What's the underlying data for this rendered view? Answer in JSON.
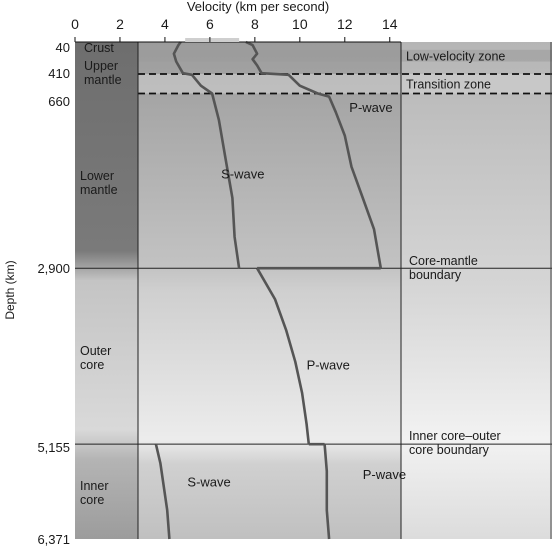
{
  "chart_data": {
    "type": "line",
    "title": "",
    "xlabel": "Velocity (km per second)",
    "ylabel": "Depth (km)",
    "xlim": [
      0,
      14.5
    ],
    "ylim": [
      0,
      6371
    ],
    "x_ticks": [
      0,
      2,
      4,
      6,
      8,
      10,
      12,
      14
    ],
    "y_tick_labels": [
      {
        "depth": 40,
        "label": "40"
      },
      {
        "depth": 410,
        "label": "410"
      },
      {
        "depth": 660,
        "label": "660"
      },
      {
        "depth": 2900,
        "label": "2,900"
      },
      {
        "depth": 5155,
        "label": "5,155"
      },
      {
        "depth": 6371,
        "label": "6,371"
      }
    ],
    "layers": [
      {
        "label": "Crust",
        "depth_top": 0,
        "depth_bottom": 40
      },
      {
        "label": "Upper mantle",
        "depth_top": 40,
        "depth_bottom": 660
      },
      {
        "label": "Lower mantle",
        "depth_top": 660,
        "depth_bottom": 2900
      },
      {
        "label": "Outer core",
        "depth_top": 2900,
        "depth_bottom": 5155
      },
      {
        "label": "Inner core",
        "depth_top": 5155,
        "depth_bottom": 6371
      }
    ],
    "zones": [
      {
        "label": "Low-velocity zone",
        "depth_top": 100,
        "depth_bottom": 250
      },
      {
        "label": "Transition zone",
        "depth_top": 410,
        "depth_bottom": 660
      }
    ],
    "boundaries": [
      {
        "label": "Core-mantle boundary",
        "depth": 2900
      },
      {
        "label": "Inner core–outer core boundary",
        "depth": 5155
      }
    ],
    "series": [
      {
        "label_segments": [
          {
            "text": "P-wave",
            "velocity": 12.2,
            "depth": 900
          },
          {
            "text": "P-wave",
            "velocity": 10.3,
            "depth": 4200
          },
          {
            "text": "P-wave",
            "velocity": 12.8,
            "depth": 5600
          }
        ],
        "segments": [
          [
            [
              7.6,
              0
            ],
            [
              7.9,
              40
            ],
            [
              8.1,
              150
            ],
            [
              7.9,
              220
            ],
            [
              8.1,
              300
            ],
            [
              8.3,
              400
            ],
            [
              9.5,
              420
            ],
            [
              10.0,
              560
            ],
            [
              10.8,
              660
            ],
            [
              11.3,
              700
            ],
            [
              11.6,
              900
            ],
            [
              12.0,
              1200
            ],
            [
              12.3,
              1600
            ],
            [
              12.8,
              2000
            ],
            [
              13.3,
              2400
            ],
            [
              13.6,
              2900
            ]
          ],
          [
            [
              8.1,
              2900
            ],
            [
              8.9,
              3300
            ],
            [
              9.4,
              3700
            ],
            [
              9.8,
              4100
            ],
            [
              10.1,
              4500
            ],
            [
              10.3,
              4900
            ],
            [
              10.4,
              5155
            ]
          ],
          [
            [
              11.1,
              5155
            ],
            [
              11.2,
              5500
            ],
            [
              11.2,
              6000
            ],
            [
              11.3,
              6371
            ]
          ]
        ]
      },
      {
        "label_segments": [
          {
            "text": "S-wave",
            "velocity": 6.5,
            "depth": 1750
          },
          {
            "text": "S-wave",
            "velocity": 5.0,
            "depth": 5700
          }
        ],
        "segments": [
          [
            [
              4.7,
              0
            ],
            [
              4.6,
              40
            ],
            [
              4.4,
              150
            ],
            [
              4.5,
              250
            ],
            [
              4.8,
              400
            ],
            [
              5.2,
              420
            ],
            [
              5.6,
              560
            ],
            [
              6.1,
              660
            ],
            [
              6.4,
              1000
            ],
            [
              6.7,
              1500
            ],
            [
              7.0,
              2000
            ],
            [
              7.1,
              2500
            ],
            [
              7.3,
              2900
            ]
          ],
          [
            [
              3.6,
              5155
            ],
            [
              3.8,
              5400
            ],
            [
              4.1,
              6000
            ],
            [
              4.2,
              6371
            ]
          ]
        ]
      }
    ]
  }
}
